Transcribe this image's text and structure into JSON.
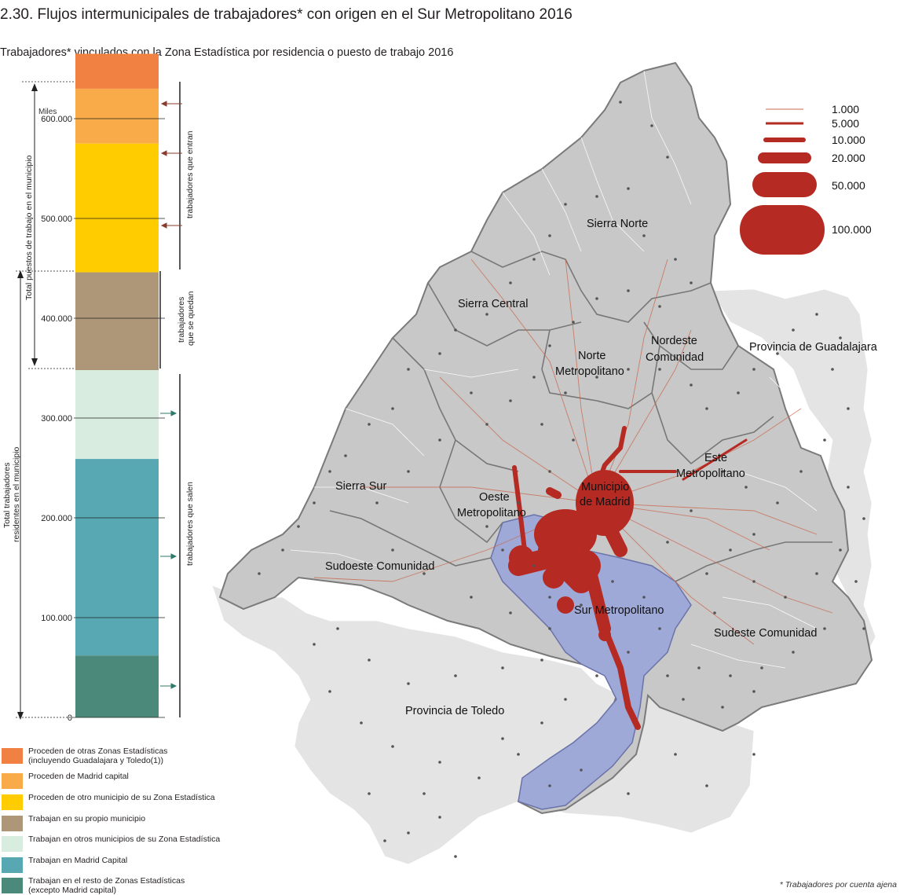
{
  "title": "2.30. Flujos intermunicipales de trabajadores* con origen en el Sur Metropolitano 2016",
  "subtitle": "Trabajadores* vinculados con la Zona Estadística por residencia o puesto de trabajo 2016",
  "footnote": "* Trabajadores por cuenta ajena",
  "bar": {
    "units": "Miles",
    "ticks": [
      "600.000",
      "500.000",
      "400.000",
      "300.000",
      "200.000",
      "100.000",
      "0"
    ],
    "left_label_top": "Total puestos de trabajo en el municipio",
    "left_label_bottom_1": "Total trabajadores",
    "left_label_bottom_2": "residentes en el municipio",
    "right_label_enter": "trabajadores que entran",
    "right_label_stay_1": "trabajadores",
    "right_label_stay_2": "que se quedan",
    "right_label_exit": "trabajadores que salen",
    "segments": [
      {
        "key": "otras_zonas",
        "from": 630000,
        "to": 665000,
        "color": "#f08143"
      },
      {
        "key": "madrid_capital_in",
        "from": 575000,
        "to": 630000,
        "color": "#f8ab48"
      },
      {
        "key": "otro_municipio_zona",
        "from": 446000,
        "to": 575000,
        "color": "#ffcc00"
      },
      {
        "key": "propio_municipio",
        "from": 348000,
        "to": 446000,
        "color": "#ae9778"
      },
      {
        "key": "otros_municipios_zona",
        "from": 259000,
        "to": 348000,
        "color": "#d8ece0"
      },
      {
        "key": "madrid_capital_out",
        "from": 62000,
        "to": 259000,
        "color": "#57a8b2"
      },
      {
        "key": "resto_zonas",
        "from": 0,
        "to": 62000,
        "color": "#4b897a"
      }
    ]
  },
  "legend": [
    {
      "line1": "Proceden de otras Zonas Estadísticas",
      "line2": "(incluyendo Guadalajara y Toledo(1))",
      "color": "#f08143"
    },
    {
      "line1": "Proceden de Madrid capital",
      "line2": "",
      "color": "#f8ab48"
    },
    {
      "line1": "Proceden de otro municipio de su Zona Estadística",
      "line2": "",
      "color": "#ffcc00"
    },
    {
      "line1": "Trabajan en su propio municipio",
      "line2": "",
      "color": "#ae9778"
    },
    {
      "line1": "Trabajan en otros municipios de su Zona Estadística",
      "line2": "",
      "color": "#d8ece0"
    },
    {
      "line1": "Trabajan en Madrid Capital",
      "line2": "",
      "color": "#57a8b2"
    },
    {
      "line1": "Trabajan en el resto de Zonas Estadísticas",
      "line2": " (excepto Madrid capital)",
      "color": "#4b897a"
    }
  ],
  "map": {
    "flow_color": "#b52a22",
    "region_color": "#c8c8c8",
    "neighbor_color": "#e4e4e4",
    "highlight_color": "#9ea9d8",
    "flow_scale": [
      "1.000",
      "5.000",
      "10.000",
      "20.000",
      "50.000",
      "100.000"
    ],
    "labels": {
      "sierra_norte": "Sierra Norte",
      "sierra_central": "Sierra Central",
      "nordeste_1": "Nordeste",
      "nordeste_2": "Comunidad",
      "guadalajara": "Provincia de Guadalajara",
      "norte_1": "Norte",
      "norte_2": "Metropolitano",
      "este_1": "Este",
      "este_2": "Metropolitano",
      "madrid_1": "Municipio",
      "madrid_2": "de Madrid",
      "oeste_1": "Oeste",
      "oeste_2": "Metropolitano",
      "sierra_sur": "Sierra Sur",
      "sudoeste": "Sudoeste Comunidad",
      "sur": "Sur Metropolitano",
      "sudeste": "Sudeste Comunidad",
      "toledo": "Provincia de Toledo"
    }
  }
}
